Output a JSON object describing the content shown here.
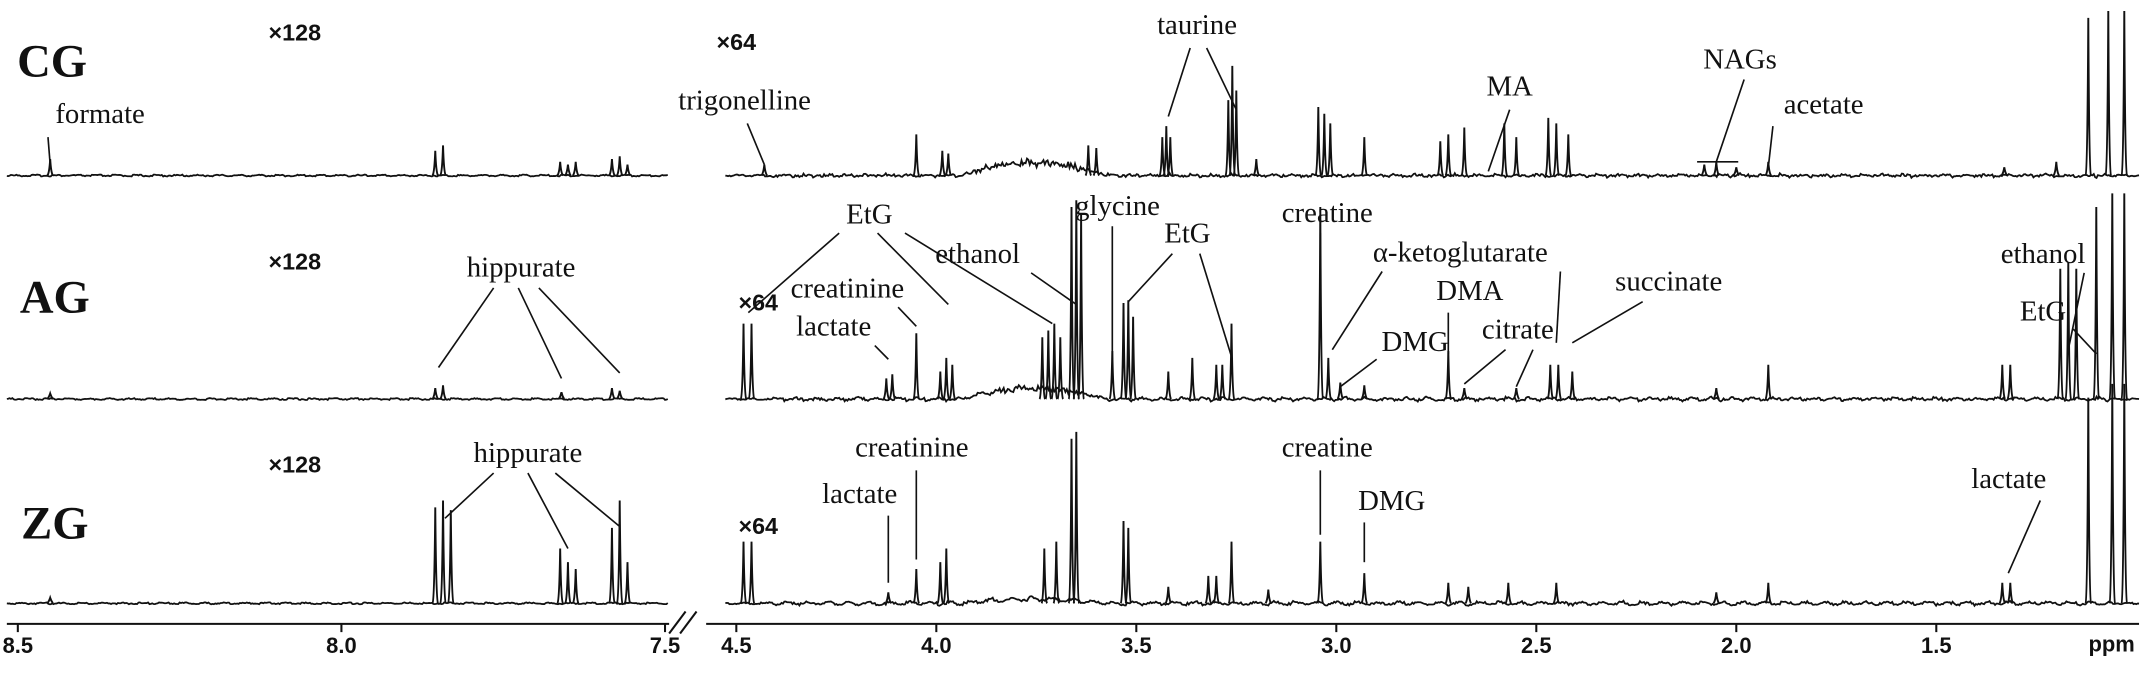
{
  "chart_data": {
    "type": "spectrum",
    "xlabel": "ppm",
    "segments": [
      {
        "xlim": [
          8.5,
          7.5
        ],
        "xticks": [
          8.5,
          {
            "value": 8,
            "label": "8.0"
          },
          7.5
        ]
      },
      {
        "xlim": [
          4.5,
          1.0
        ],
        "xticks": [
          4.5,
          {
            "value": 4,
            "label": "4.0"
          },
          3.5,
          {
            "value": 3,
            "label": "3.0"
          },
          2.5,
          {
            "value": 2,
            "label": "2.0"
          },
          1.5
        ]
      }
    ],
    "spectra": [
      {
        "name": "CG",
        "left_scale": "×128",
        "right_scale": "×64",
        "peaks": [
          [
            8.45,
            12
          ],
          [
            7.855,
            18
          ],
          [
            7.843,
            22
          ],
          [
            7.662,
            10
          ],
          [
            7.65,
            8
          ],
          [
            7.638,
            10
          ],
          [
            7.582,
            12
          ],
          [
            7.57,
            14
          ],
          [
            7.558,
            8
          ],
          [
            4.43,
            8
          ],
          [
            4.05,
            30
          ],
          [
            3.985,
            18
          ],
          [
            3.97,
            16
          ],
          [
            3.62,
            22
          ],
          [
            3.6,
            20
          ],
          [
            3.435,
            28
          ],
          [
            3.425,
            36
          ],
          [
            3.415,
            28
          ],
          [
            3.27,
            55
          ],
          [
            3.26,
            80
          ],
          [
            3.25,
            62
          ],
          [
            3.2,
            12
          ],
          [
            3.045,
            50
          ],
          [
            3.03,
            45
          ],
          [
            3.015,
            38
          ],
          [
            2.93,
            28
          ],
          [
            2.74,
            25
          ],
          [
            2.72,
            30
          ],
          [
            2.68,
            35
          ],
          [
            2.58,
            38
          ],
          [
            2.55,
            28
          ],
          [
            2.47,
            42
          ],
          [
            2.45,
            38
          ],
          [
            2.42,
            30
          ],
          [
            2.08,
            8
          ],
          [
            2.05,
            10
          ],
          [
            2.0,
            6
          ],
          [
            1.92,
            10
          ],
          [
            1.33,
            6
          ],
          [
            1.2,
            10
          ],
          [
            1.12,
            115
          ],
          [
            1.07,
            120
          ],
          [
            1.03,
            120
          ]
        ],
        "annotations": [
          {
            "text": "formate",
            "ppm": [
              8.45
            ]
          },
          {
            "text": "trigonelline",
            "ppm": [
              4.43
            ]
          },
          {
            "text": "taurine",
            "ppm": [
              3.42,
              3.25
            ]
          },
          {
            "text": "MA",
            "ppm": [
              2.62
            ]
          },
          {
            "text": "NAGs",
            "ppm": [
              2.05
            ]
          },
          {
            "text": "acetate",
            "ppm": [
              1.92
            ]
          }
        ]
      },
      {
        "name": "AG",
        "left_scale": "×128",
        "right_scale": "×64",
        "peaks": [
          [
            8.45,
            4
          ],
          [
            7.855,
            8
          ],
          [
            7.843,
            10
          ],
          [
            7.66,
            5
          ],
          [
            7.582,
            8
          ],
          [
            7.57,
            6
          ],
          [
            4.482,
            55
          ],
          [
            4.462,
            55
          ],
          [
            4.125,
            15
          ],
          [
            4.11,
            18
          ],
          [
            4.05,
            48
          ],
          [
            3.99,
            20
          ],
          [
            3.975,
            30
          ],
          [
            3.96,
            25
          ],
          [
            3.735,
            45
          ],
          [
            3.72,
            50
          ],
          [
            3.705,
            55
          ],
          [
            3.69,
            45
          ],
          [
            3.662,
            140
          ],
          [
            3.65,
            145
          ],
          [
            3.638,
            135
          ],
          [
            3.56,
            35
          ],
          [
            3.532,
            70
          ],
          [
            3.52,
            72
          ],
          [
            3.508,
            60
          ],
          [
            3.42,
            20
          ],
          [
            3.36,
            30
          ],
          [
            3.3,
            25
          ],
          [
            3.285,
            25
          ],
          [
            3.262,
            55
          ],
          [
            3.04,
            140
          ],
          [
            3.02,
            30
          ],
          [
            2.99,
            12
          ],
          [
            2.93,
            10
          ],
          [
            2.72,
            35
          ],
          [
            2.68,
            8
          ],
          [
            2.55,
            8
          ],
          [
            2.465,
            25
          ],
          [
            2.445,
            25
          ],
          [
            2.41,
            20
          ],
          [
            2.05,
            8
          ],
          [
            1.92,
            25
          ],
          [
            1.335,
            25
          ],
          [
            1.315,
            25
          ],
          [
            1.19,
            95
          ],
          [
            1.17,
            100
          ],
          [
            1.15,
            95
          ],
          [
            1.1,
            140
          ],
          [
            1.06,
            150
          ],
          [
            1.03,
            150
          ]
        ],
        "annotations": [
          {
            "text": "hippurate",
            "ppm": [
              7.85,
              7.66,
              7.57
            ]
          },
          {
            "text": "EtG",
            "ppm": [
              4.47,
              3.97,
              3.71
            ]
          },
          {
            "text": "creatinine",
            "ppm": [
              4.05
            ]
          },
          {
            "text": "lactate",
            "ppm": [
              4.12
            ]
          },
          {
            "text": "ethanol",
            "ppm": [
              3.65
            ]
          },
          {
            "text": "glycine",
            "ppm": [
              3.56
            ]
          },
          {
            "text": "EtG",
            "ppm": [
              3.52,
              3.26
            ]
          },
          {
            "text": "creatine",
            "ppm": [
              3.04
            ]
          },
          {
            "text": "α-ketoglutarate",
            "ppm": [
              3.01,
              2.45
            ]
          },
          {
            "text": "DMA",
            "ppm": [
              2.72
            ]
          },
          {
            "text": "DMG",
            "ppm": [
              2.99
            ]
          },
          {
            "text": "citrate",
            "ppm": [
              2.68,
              2.55
            ]
          },
          {
            "text": "succinate",
            "ppm": [
              2.41
            ]
          },
          {
            "text": "ethanol",
            "ppm": [
              1.17
            ]
          },
          {
            "text": "EtG",
            "ppm": [
              1.1
            ]
          }
        ]
      },
      {
        "name": "ZG",
        "left_scale": "×128",
        "right_scale": "×64",
        "peaks": [
          [
            8.45,
            4
          ],
          [
            7.855,
            70
          ],
          [
            7.843,
            75
          ],
          [
            7.831,
            68
          ],
          [
            7.662,
            40
          ],
          [
            7.65,
            30
          ],
          [
            7.638,
            25
          ],
          [
            7.582,
            55
          ],
          [
            7.57,
            75
          ],
          [
            7.558,
            30
          ],
          [
            4.482,
            45
          ],
          [
            4.462,
            45
          ],
          [
            4.12,
            8
          ],
          [
            4.05,
            25
          ],
          [
            3.99,
            30
          ],
          [
            3.975,
            40
          ],
          [
            3.73,
            40
          ],
          [
            3.7,
            45
          ],
          [
            3.662,
            120
          ],
          [
            3.65,
            125
          ],
          [
            3.532,
            60
          ],
          [
            3.52,
            55
          ],
          [
            3.42,
            12
          ],
          [
            3.32,
            20
          ],
          [
            3.3,
            20
          ],
          [
            3.262,
            45
          ],
          [
            3.17,
            10
          ],
          [
            3.04,
            45
          ],
          [
            2.93,
            22
          ],
          [
            2.72,
            15
          ],
          [
            2.67,
            12
          ],
          [
            2.57,
            15
          ],
          [
            2.45,
            15
          ],
          [
            2.05,
            8
          ],
          [
            1.92,
            15
          ],
          [
            1.335,
            15
          ],
          [
            1.315,
            15
          ],
          [
            1.12,
            150
          ],
          [
            1.06,
            160
          ],
          [
            1.03,
            160
          ]
        ],
        "annotations": [
          {
            "text": "hippurate",
            "ppm": [
              7.84,
              7.65,
              7.57
            ]
          },
          {
            "text": "creatinine",
            "ppm": [
              4.05
            ]
          },
          {
            "text": "lactate",
            "ppm": [
              4.12
            ]
          },
          {
            "text": "creatine",
            "ppm": [
              3.04
            ]
          },
          {
            "text": "DMG",
            "ppm": [
              2.93
            ]
          },
          {
            "text": "lactate",
            "ppm": [
              1.32
            ]
          }
        ]
      }
    ]
  }
}
